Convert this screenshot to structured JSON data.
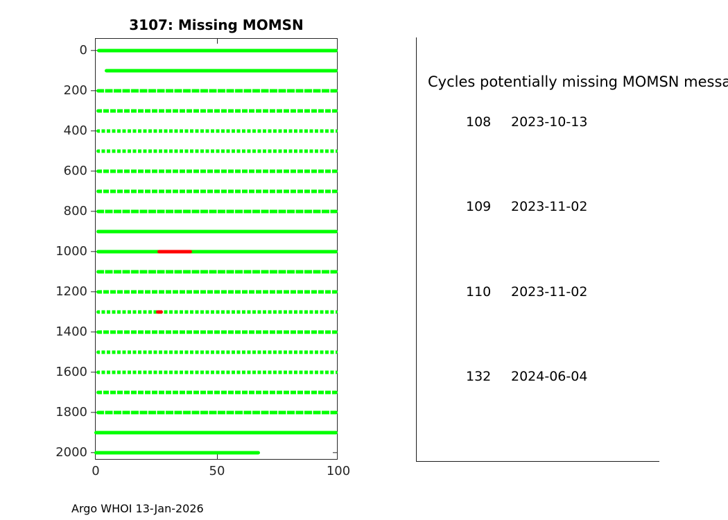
{
  "title": "3107: Missing MOMSN",
  "footer": "Argo WHOI 13-Jan-2026",
  "colors": {
    "line_green": "#00ff00",
    "missing_red": "#ff0000",
    "axis": "#262626"
  },
  "chart_data": {
    "type": "line",
    "title": "3107: Missing MOMSN",
    "xlabel": "",
    "ylabel": "",
    "xlim": [
      0,
      100
    ],
    "ylim": [
      0,
      2000
    ],
    "y_axis_inverted": true,
    "grid": false,
    "x_ticks": [
      0,
      50,
      100
    ],
    "y_ticks": [
      0,
      200,
      400,
      600,
      800,
      1000,
      1200,
      1400,
      1600,
      1800,
      2000
    ],
    "rows": [
      {
        "y": 0,
        "x_start": 1.4,
        "x_end": 99,
        "texture": "solid"
      },
      {
        "y": 100,
        "x_start": 4.5,
        "x_end": 99,
        "texture": "solid"
      },
      {
        "y": 200,
        "x_start": 1,
        "x_end": 99,
        "texture": "light"
      },
      {
        "y": 300,
        "x_start": 1,
        "x_end": 99,
        "texture": "medium"
      },
      {
        "y": 400,
        "x_start": 1,
        "x_end": 99,
        "texture": "heavy"
      },
      {
        "y": 500,
        "x_start": 1,
        "x_end": 99,
        "texture": "heavy"
      },
      {
        "y": 600,
        "x_start": 1,
        "x_end": 99,
        "texture": "medium"
      },
      {
        "y": 700,
        "x_start": 1,
        "x_end": 99,
        "texture": "medium"
      },
      {
        "y": 800,
        "x_start": 1,
        "x_end": 99,
        "texture": "light"
      },
      {
        "y": 900,
        "x_start": 1,
        "x_end": 99,
        "texture": "solid"
      },
      {
        "y": 1000,
        "x_start": 1,
        "x_end": 99,
        "texture": "solid"
      },
      {
        "y": 1100,
        "x_start": 1,
        "x_end": 99,
        "texture": "light"
      },
      {
        "y": 1200,
        "x_start": 1,
        "x_end": 99,
        "texture": "medium"
      },
      {
        "y": 1300,
        "x_start": 1,
        "x_end": 99,
        "texture": "heavy"
      },
      {
        "y": 1400,
        "x_start": 1,
        "x_end": 99,
        "texture": "medium"
      },
      {
        "y": 1500,
        "x_start": 1,
        "x_end": 99,
        "texture": "heavy"
      },
      {
        "y": 1600,
        "x_start": 1,
        "x_end": 99,
        "texture": "heavy"
      },
      {
        "y": 1700,
        "x_start": 1,
        "x_end": 99,
        "texture": "medium"
      },
      {
        "y": 1800,
        "x_start": 1,
        "x_end": 99,
        "texture": "light"
      },
      {
        "y": 1900,
        "x_start": 0,
        "x_end": 99,
        "texture": "solid"
      },
      {
        "y": 2000,
        "x_start": 0,
        "x_end": 67,
        "texture": "solid"
      }
    ],
    "missing_segments": [
      {
        "y": 1000,
        "x_start": 26,
        "x_end": 39
      },
      {
        "y": 1300,
        "x_start": 25.6,
        "x_end": 27
      }
    ]
  },
  "side_panel": {
    "heading": "Cycles potentially missing MOMSN messa",
    "rows": [
      {
        "cycle": "108",
        "date": "2023-10-13"
      },
      {
        "cycle": "109",
        "date": "2023-11-02"
      },
      {
        "cycle": "110",
        "date": "2023-11-02"
      },
      {
        "cycle": "132",
        "date": "2024-06-04"
      }
    ]
  }
}
